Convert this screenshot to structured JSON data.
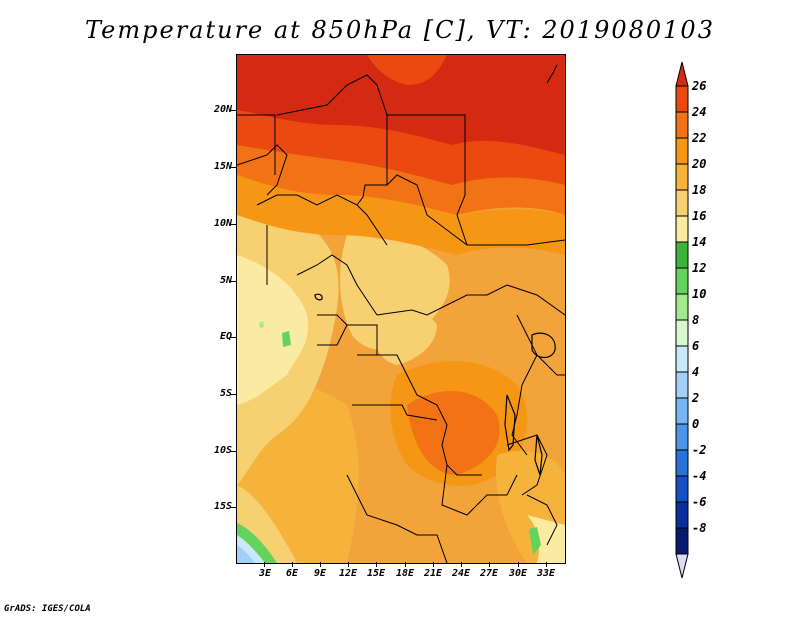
{
  "title": "Temperature at 850hPa [C], VT: 2019080103",
  "credit": "GrADS: IGES/COLA",
  "map": {
    "lat_labels": [
      "20N",
      "15N",
      "10N",
      "5N",
      "EQ",
      "5S",
      "10S",
      "15S"
    ],
    "lon_labels": [
      "3E",
      "6E",
      "9E",
      "12E",
      "15E",
      "18E",
      "21E",
      "24E",
      "27E",
      "30E",
      "33E"
    ]
  },
  "colorbar": {
    "labels": [
      "26",
      "24",
      "22",
      "20",
      "18",
      "16",
      "14",
      "12",
      "10",
      "8",
      "6",
      "4",
      "2",
      "0",
      "-2",
      "-4",
      "-6",
      "-8"
    ],
    "colors": [
      "#d42a12",
      "#ea4a10",
      "#f27216",
      "#f59614",
      "#f5b33c",
      "#f7d072",
      "#faeaa2",
      "#3eb33c",
      "#66d25e",
      "#a3e990",
      "#d8f7d0",
      "#c9e8fb",
      "#a2d0f7",
      "#78b5f2",
      "#4c95e8",
      "#2a72d8",
      "#1550c2",
      "#0a2f9a",
      "#071a6e",
      "#dcdcf5"
    ]
  }
}
